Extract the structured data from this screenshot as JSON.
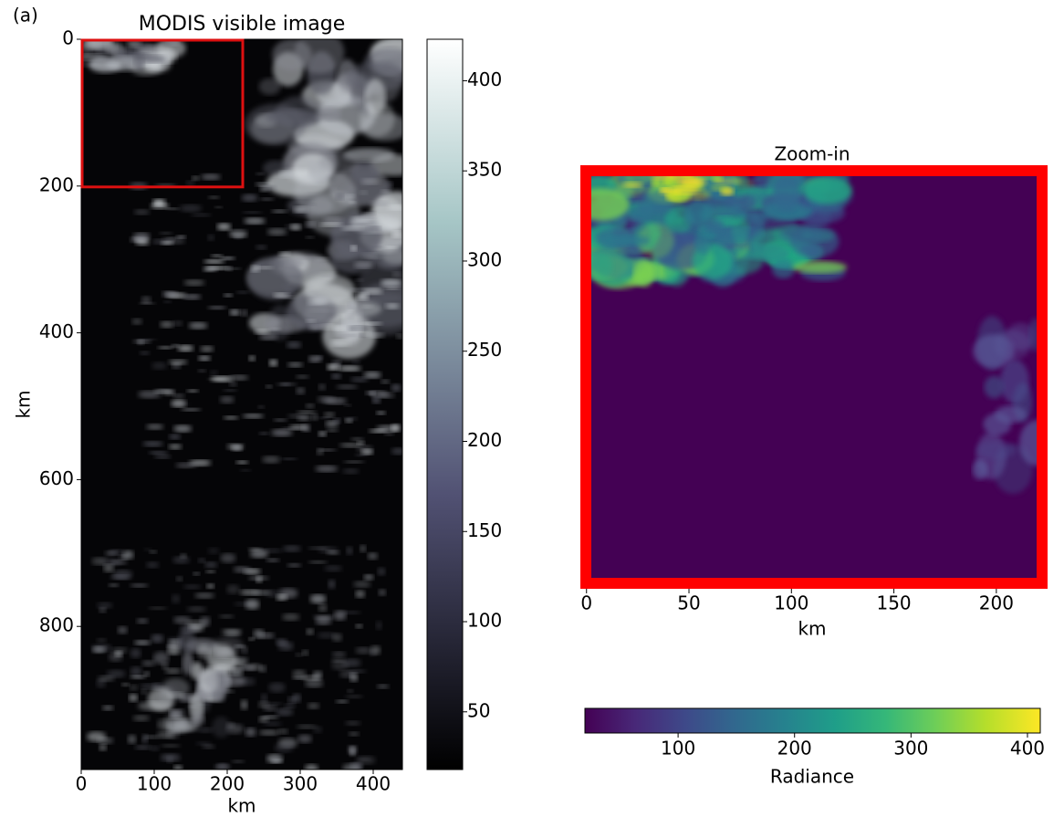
{
  "chart_data": [
    {
      "type": "image",
      "panel_label": "(a)",
      "title": "MODIS visible image",
      "xlabel": "km",
      "ylabel": "km",
      "colormap": "bone",
      "xlim": [
        0,
        440
      ],
      "xticks": [
        0,
        100,
        200,
        300,
        400
      ],
      "ylim": [
        995,
        0
      ],
      "yticks": [
        0,
        200,
        400,
        600,
        800
      ],
      "zoom_box": {
        "x": [
          0,
          220
        ],
        "y": [
          0,
          200
        ],
        "color": "#dd1010"
      },
      "colorbar": {
        "orientation": "vertical",
        "lim": [
          18,
          423
        ],
        "ticks": [
          50,
          100,
          150,
          200,
          250,
          300,
          350,
          400
        ]
      }
    },
    {
      "type": "image",
      "title": "Zoom-in",
      "xlabel": "km",
      "colormap": "viridis",
      "frame_color": "#ff0000",
      "xlim": [
        -3,
        225
      ],
      "xticks": [
        0,
        50,
        100,
        150,
        200
      ],
      "colorbar": {
        "orientation": "horizontal",
        "label": "Radiance",
        "lim": [
          20,
          411
        ],
        "ticks": [
          100,
          200,
          300,
          400
        ]
      }
    }
  ]
}
